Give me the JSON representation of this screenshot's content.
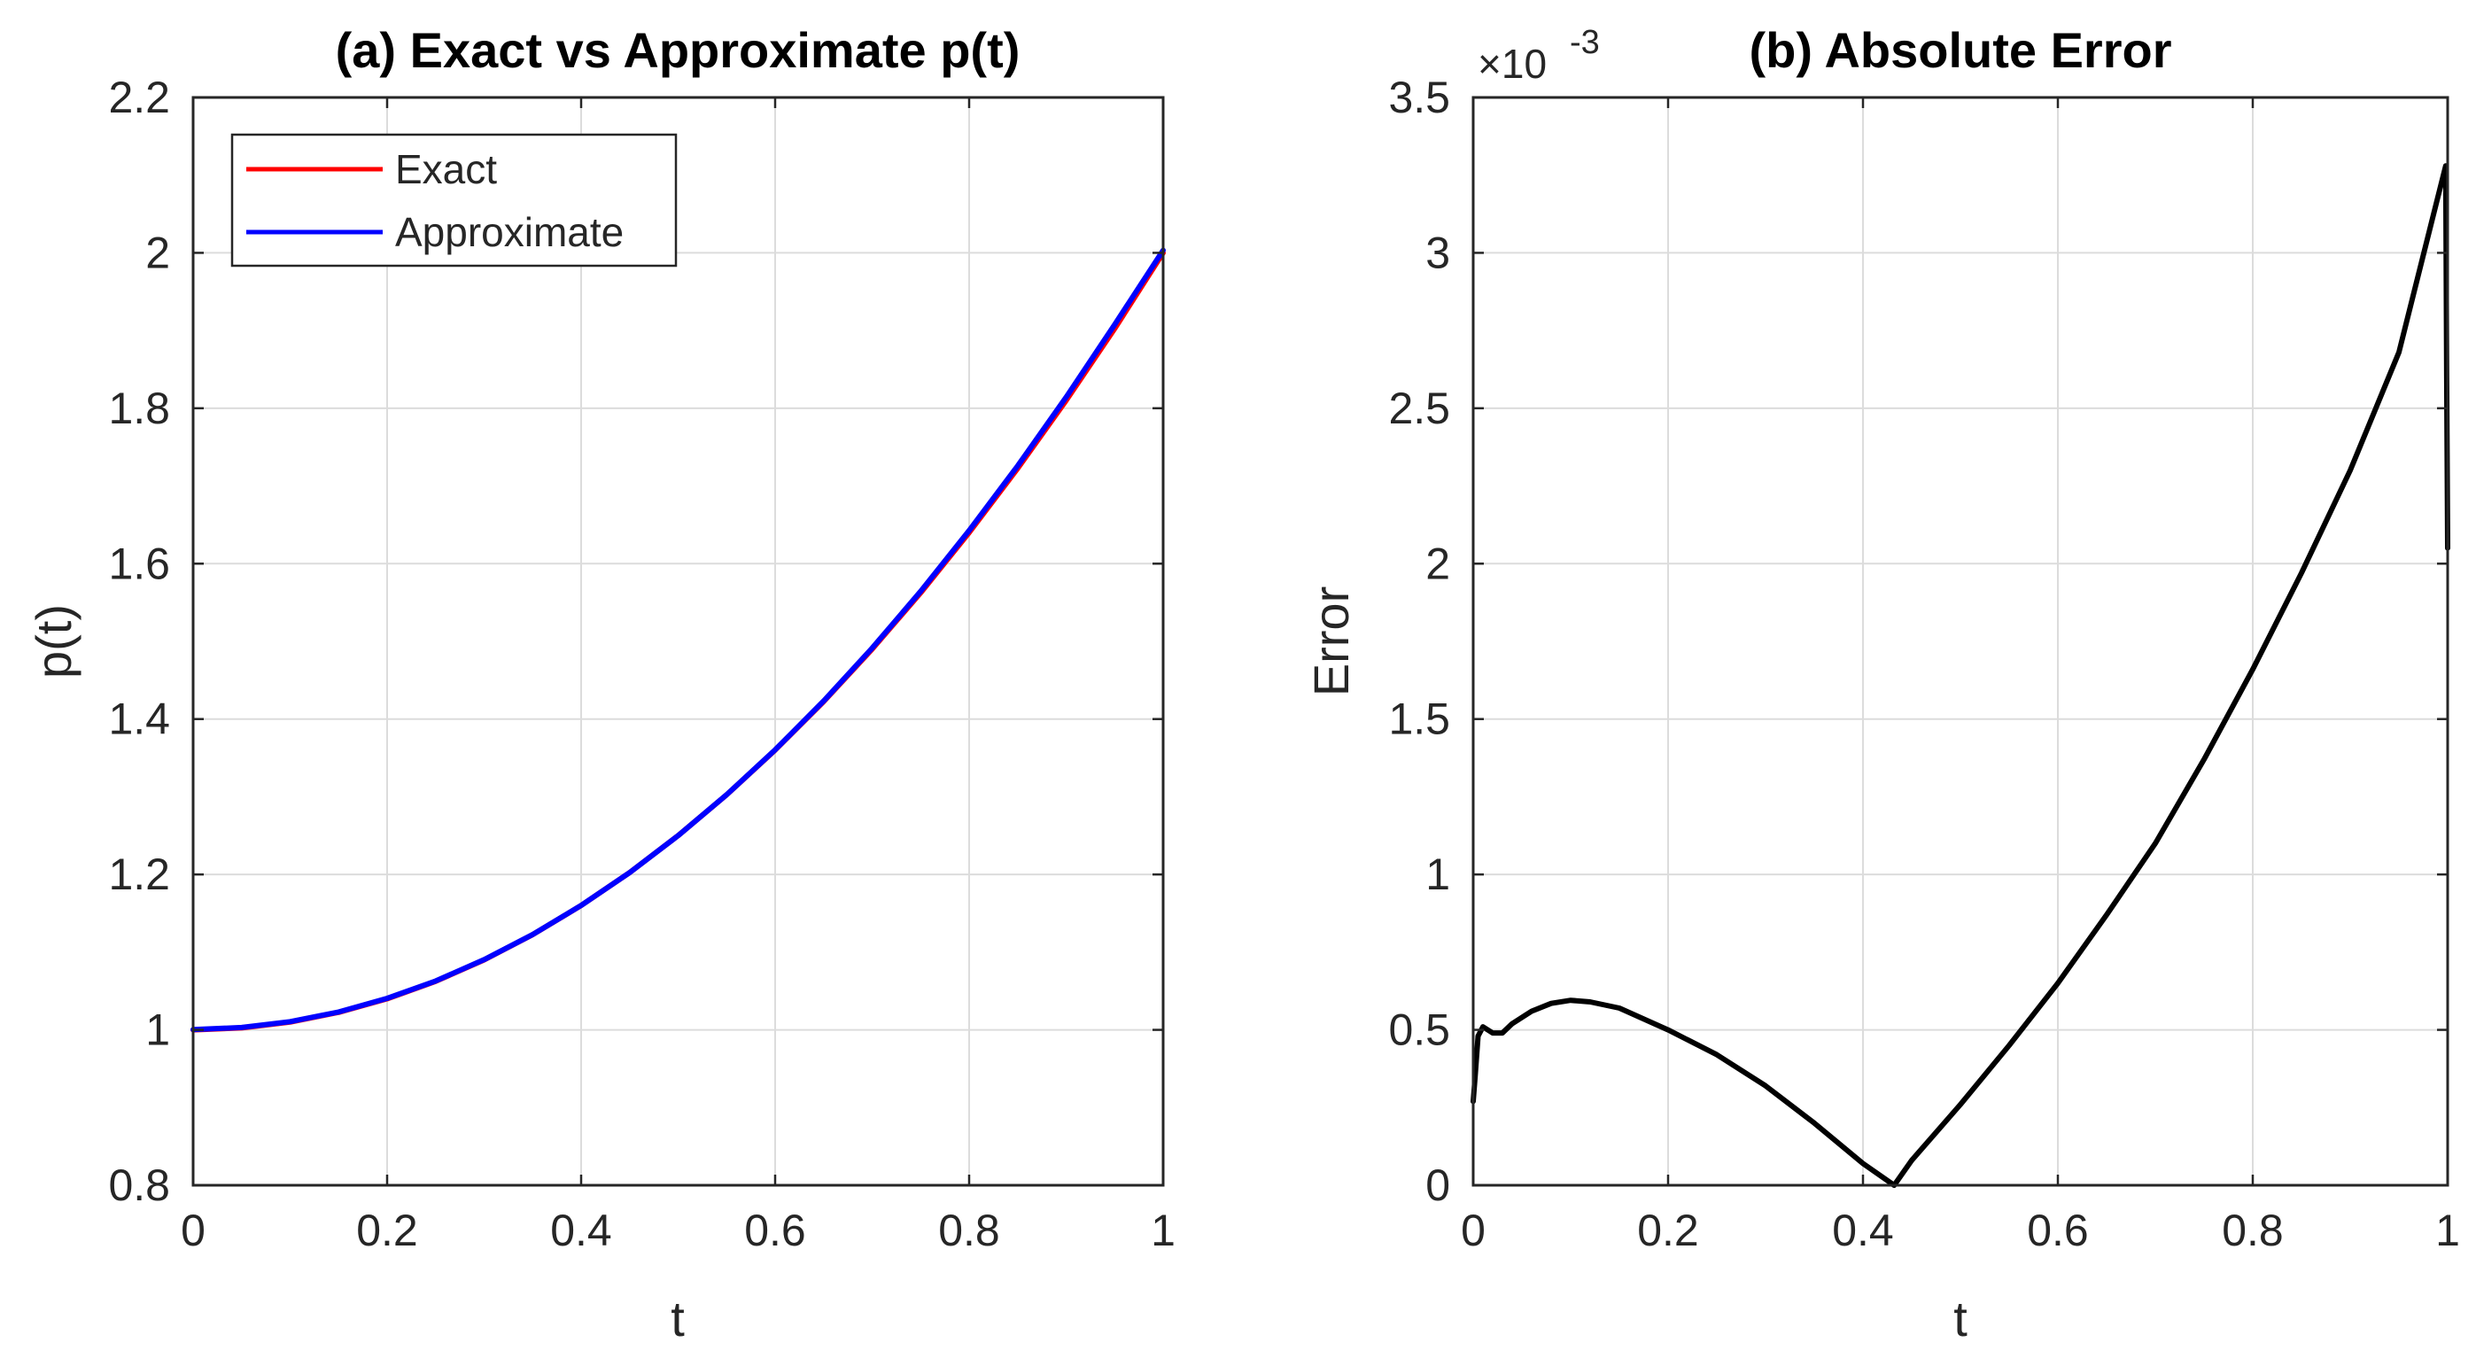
{
  "chart_data": [
    {
      "type": "line",
      "title": "(a) Exact vs Approximate p(t)",
      "xlabel": "t",
      "ylabel": "p(t)",
      "xlim": [
        0,
        1
      ],
      "ylim": [
        0.8,
        2.2
      ],
      "xticks": [
        0,
        0.2,
        0.4,
        0.6,
        0.8,
        1
      ],
      "yticks": [
        0.8,
        1,
        1.2,
        1.4,
        1.6,
        1.8,
        2,
        2.2
      ],
      "xtick_labels": [
        "0",
        "0.2",
        "0.4",
        "0.6",
        "0.8",
        "1"
      ],
      "ytick_labels": [
        "0.8",
        "1",
        "1.2",
        "1.4",
        "1.6",
        "1.8",
        "2",
        "2.2"
      ],
      "grid": true,
      "legend_position": "top-left",
      "series": [
        {
          "name": "Exact",
          "color": "#ff0000",
          "x": [
            0,
            0.05,
            0.1,
            0.15,
            0.2,
            0.25,
            0.3,
            0.35,
            0.4,
            0.45,
            0.5,
            0.55,
            0.6,
            0.65,
            0.7,
            0.75,
            0.8,
            0.85,
            0.9,
            0.95,
            1
          ],
          "y": [
            1.0,
            1.0025,
            1.01,
            1.0225,
            1.04,
            1.0625,
            1.09,
            1.1225,
            1.16,
            1.2025,
            1.25,
            1.3025,
            1.36,
            1.4225,
            1.49,
            1.5625,
            1.64,
            1.7225,
            1.81,
            1.9025,
            2.0
          ]
        },
        {
          "name": "Approximate",
          "color": "#0000ff",
          "x": [
            0,
            0.05,
            0.1,
            0.15,
            0.2,
            0.25,
            0.3,
            0.35,
            0.4,
            0.45,
            0.5,
            0.55,
            0.6,
            0.65,
            0.7,
            0.75,
            0.8,
            0.85,
            0.9,
            0.95,
            1
          ],
          "y": [
            1.0003,
            1.003,
            1.0106,
            1.023,
            1.0405,
            1.0629,
            1.0904,
            1.1228,
            1.1601,
            1.2025,
            1.25,
            1.3027,
            1.3604,
            1.4233,
            1.4913,
            1.5644,
            1.6426,
            1.7258,
            1.8142,
            1.9077,
            2.0033
          ]
        }
      ]
    },
    {
      "type": "line",
      "title": "(b) Absolute Error",
      "xlabel": "t",
      "ylabel": "Error",
      "exponent_label": "×10",
      "exponent_power": "-3",
      "xlim": [
        0,
        1
      ],
      "ylim": [
        0,
        3.5
      ],
      "xticks": [
        0,
        0.2,
        0.4,
        0.6,
        0.8,
        1
      ],
      "yticks": [
        0,
        0.5,
        1,
        1.5,
        2,
        2.5,
        3,
        3.5
      ],
      "xtick_labels": [
        "0",
        "0.2",
        "0.4",
        "0.6",
        "0.8",
        "1"
      ],
      "ytick_labels": [
        "0",
        "0.5",
        "1",
        "1.5",
        "2",
        "2.5",
        "3",
        "3.5"
      ],
      "grid": true,
      "y_scale_note": "values in units of 1e-3",
      "series": [
        {
          "name": "Error",
          "color": "#000000",
          "x": [
            0,
            0.002,
            0.005,
            0.01,
            0.015,
            0.02,
            0.03,
            0.04,
            0.06,
            0.08,
            0.1,
            0.12,
            0.15,
            0.2,
            0.25,
            0.3,
            0.35,
            0.4,
            0.432,
            0.45,
            0.5,
            0.55,
            0.6,
            0.65,
            0.7,
            0.75,
            0.8,
            0.85,
            0.9,
            0.95,
            0.998,
            0.999,
            1.0
          ],
          "y": [
            0.27,
            0.35,
            0.48,
            0.51,
            0.5,
            0.49,
            0.49,
            0.52,
            0.56,
            0.585,
            0.595,
            0.59,
            0.57,
            0.5,
            0.42,
            0.32,
            0.2,
            0.07,
            0.0,
            0.08,
            0.26,
            0.45,
            0.65,
            0.87,
            1.1,
            1.37,
            1.66,
            1.97,
            2.3,
            2.68,
            3.28,
            2.6,
            2.05
          ]
        }
      ]
    }
  ]
}
